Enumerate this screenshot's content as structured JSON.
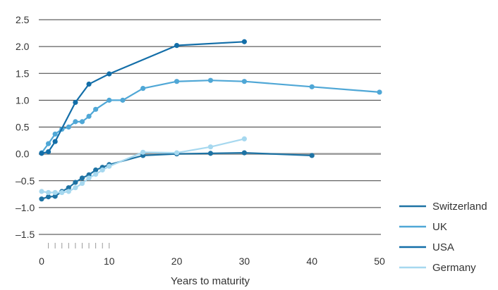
{
  "chart_data": {
    "type": "line",
    "title": "",
    "xlabel": "Years to maturity",
    "ylabel": "",
    "xlim": [
      0,
      50
    ],
    "ylim": [
      -1.5,
      2.5
    ],
    "x_ticks": [
      0,
      10,
      20,
      30,
      40,
      50
    ],
    "y_ticks": [
      2.5,
      2.0,
      1.5,
      1.0,
      0.5,
      0.0,
      -0.5,
      -1.0,
      -1.5
    ],
    "y_tick_labels": [
      "2.5",
      "2.0",
      "1.5",
      "1.0",
      "0.5",
      "0.0",
      "–0.5",
      "–1.0",
      "–1.5"
    ],
    "x_minor_ticks": [
      1,
      2,
      3,
      4,
      5,
      6,
      7,
      8,
      9,
      10
    ],
    "grid": "horizontal",
    "legend_position": "bottom-right",
    "series": [
      {
        "name": "Switzerland",
        "color": "#1e73a4",
        "points": [
          [
            0,
            -0.84
          ],
          [
            1,
            -0.8
          ],
          [
            2,
            -0.79
          ],
          [
            3,
            -0.7
          ],
          [
            4,
            -0.63
          ],
          [
            5,
            -0.53
          ],
          [
            6,
            -0.45
          ],
          [
            7,
            -0.39
          ],
          [
            8,
            -0.3
          ],
          [
            9,
            -0.25
          ],
          [
            10,
            -0.2
          ],
          [
            15,
            -0.03
          ],
          [
            20,
            0.0
          ],
          [
            25,
            0.01
          ],
          [
            30,
            0.02
          ],
          [
            40,
            -0.03
          ]
        ]
      },
      {
        "name": "UK",
        "color": "#4fa7d6",
        "points": [
          [
            0,
            0.02
          ],
          [
            1,
            0.19
          ],
          [
            2,
            0.37
          ],
          [
            3,
            0.46
          ],
          [
            4,
            0.5
          ],
          [
            5,
            0.6
          ],
          [
            6,
            0.6
          ],
          [
            7,
            0.7
          ],
          [
            8,
            0.83
          ],
          [
            10,
            1.0
          ],
          [
            12,
            1.0
          ],
          [
            15,
            1.22
          ],
          [
            20,
            1.35
          ],
          [
            25,
            1.37
          ],
          [
            30,
            1.35
          ],
          [
            40,
            1.25
          ],
          [
            50,
            1.15
          ]
        ]
      },
      {
        "name": "USA",
        "color": "#136ea8",
        "points": [
          [
            0,
            0.01
          ],
          [
            1,
            0.04
          ],
          [
            2,
            0.23
          ],
          [
            5,
            0.96
          ],
          [
            7,
            1.3
          ],
          [
            10,
            1.49
          ],
          [
            20,
            2.02
          ],
          [
            30,
            2.09
          ]
        ]
      },
      {
        "name": "Germany",
        "color": "#a6d8ef",
        "points": [
          [
            0,
            -0.7
          ],
          [
            1,
            -0.72
          ],
          [
            2,
            -0.72
          ],
          [
            3,
            -0.72
          ],
          [
            4,
            -0.7
          ],
          [
            5,
            -0.63
          ],
          [
            6,
            -0.55
          ],
          [
            7,
            -0.45
          ],
          [
            8,
            -0.38
          ],
          [
            9,
            -0.3
          ],
          [
            10,
            -0.23
          ],
          [
            15,
            0.03
          ],
          [
            20,
            0.02
          ],
          [
            25,
            0.13
          ],
          [
            30,
            0.28
          ]
        ]
      }
    ]
  }
}
